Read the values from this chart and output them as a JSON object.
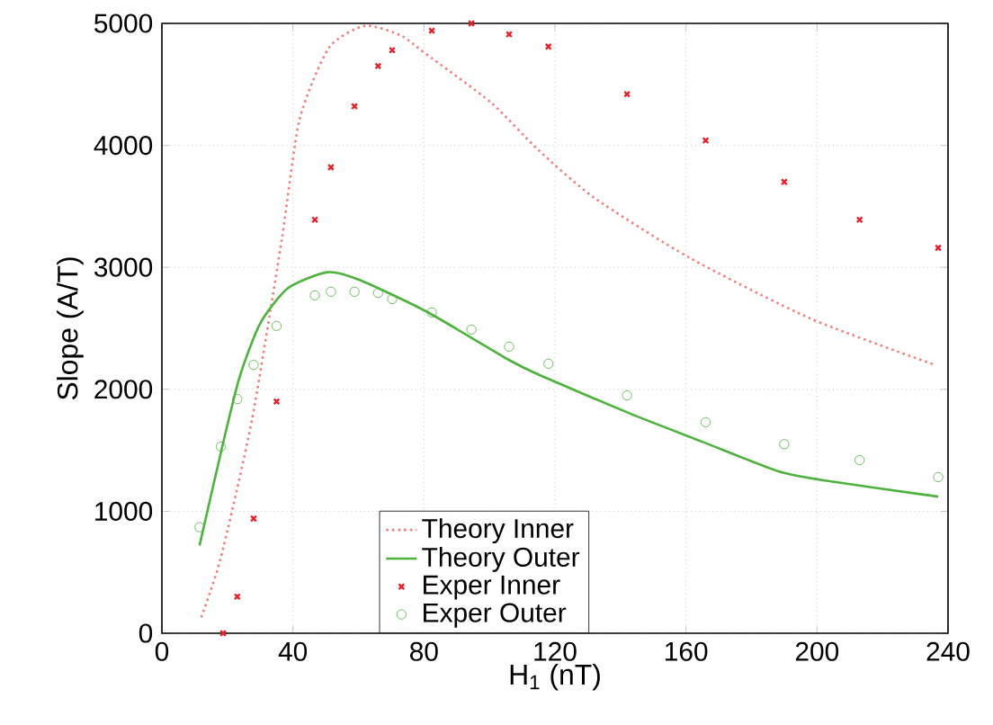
{
  "chart_data": {
    "type": "line",
    "xlabel": "H$_{1}$ (nT)",
    "ylabel": "Slope (A/T)",
    "xlim": [
      0,
      240
    ],
    "ylim": [
      0,
      5000
    ],
    "xticks": [
      0,
      40,
      80,
      120,
      160,
      200,
      240
    ],
    "yticks": [
      0,
      1000,
      2000,
      3000,
      4000,
      5000
    ],
    "grid": true,
    "legend": "bottom",
    "series": [
      {
        "name": "Theory Inner",
        "color": "#f08080",
        "line_style": "dotted",
        "marker": "none",
        "x": [
          12,
          18,
          27.5,
          36.6,
          42,
          51,
          62,
          73,
          80.6,
          100.5,
          115,
          132,
          161,
          198,
          236
        ],
        "values": [
          130,
          620,
          1750,
          3230,
          4210,
          4800,
          4980,
          4900,
          4750,
          4350,
          3960,
          3570,
          3080,
          2580,
          2200
        ]
      },
      {
        "name": "Theory Outer",
        "color": "#4db33d",
        "line_style": "solid",
        "marker": "none",
        "x": [
          11.5,
          18,
          23.6,
          30,
          38.5,
          50.5,
          60,
          80.6,
          106,
          115,
          143,
          165,
          188,
          203,
          237
        ],
        "values": [
          720,
          1480,
          2090,
          2540,
          2830,
          2960,
          2900,
          2640,
          2240,
          2120,
          1800,
          1570,
          1330,
          1250,
          1120
        ]
      },
      {
        "name": "Exper Inner",
        "type": "scatter",
        "color": "#e8202a",
        "marker": "cross",
        "x": [
          18.7,
          23,
          28,
          35,
          46.7,
          51.6,
          58.8,
          66,
          70.3,
          82.4,
          94.5,
          106,
          118,
          142,
          166,
          190,
          213,
          237
        ],
        "values": [
          0,
          300,
          940,
          1900,
          3390,
          3820,
          4320,
          4650,
          4780,
          4940,
          5000,
          4910,
          4810,
          4420,
          4040,
          3700,
          3390,
          3160
        ]
      },
      {
        "name": "Exper Outer",
        "type": "scatter",
        "color": "#4db33d",
        "marker": "circle",
        "x": [
          11.5,
          18,
          23,
          28,
          35,
          46.7,
          51.6,
          58.8,
          66,
          70.3,
          82.4,
          94.5,
          106,
          118,
          142,
          166,
          190,
          213,
          237
        ],
        "values": [
          870,
          1530,
          1920,
          2200,
          2520,
          2770,
          2800,
          2800,
          2790,
          2740,
          2630,
          2490,
          2350,
          2210,
          1950,
          1730,
          1550,
          1420,
          1280
        ]
      }
    ]
  }
}
